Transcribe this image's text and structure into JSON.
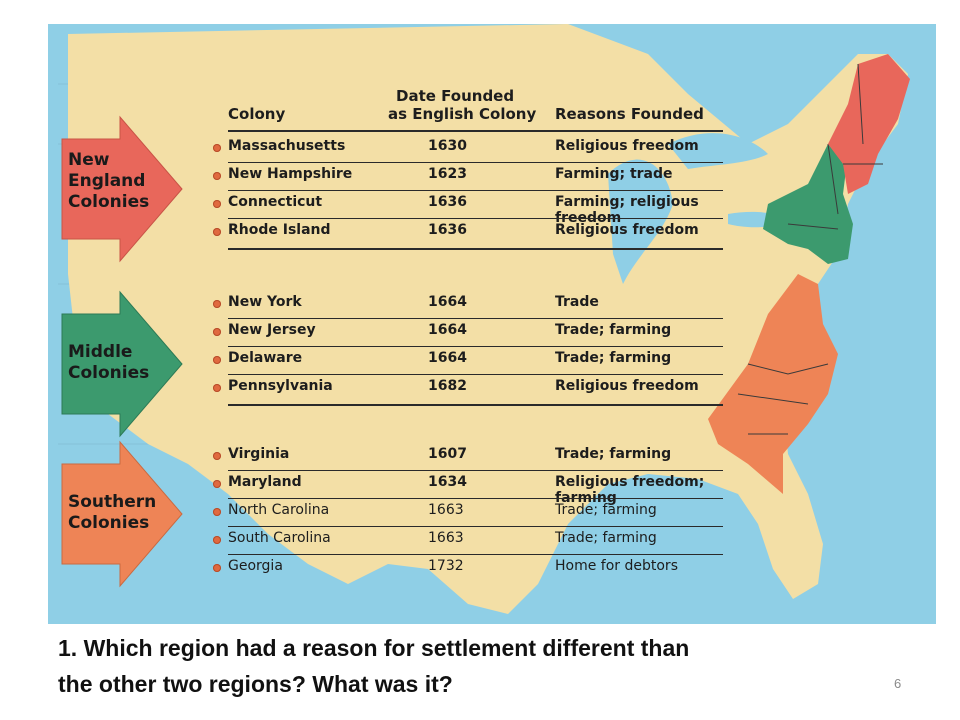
{
  "figure": {
    "headers": {
      "colony": "Colony",
      "date_line1": "Date Founded",
      "date_line2": "as English Colony",
      "reasons": "Reasons Founded"
    },
    "regions": [
      {
        "label_lines": [
          "New",
          "England",
          "Colonies"
        ],
        "color": "#e8675b",
        "colonies": [
          {
            "name": "Massachusetts",
            "year": "1630",
            "reason": "Religious freedom"
          },
          {
            "name": "New Hampshire",
            "year": "1623",
            "reason": "Farming; trade"
          },
          {
            "name": "Connecticut",
            "year": "1636",
            "reason": "Farming; religious freedom"
          },
          {
            "name": "Rhode Island",
            "year": "1636",
            "reason": "Religious freedom"
          }
        ]
      },
      {
        "label_lines": [
          "Middle",
          "Colonies"
        ],
        "color": "#3c9a6e",
        "colonies": [
          {
            "name": "New York",
            "year": "1664",
            "reason": "Trade"
          },
          {
            "name": "New Jersey",
            "year": "1664",
            "reason": "Trade; farming"
          },
          {
            "name": "Delaware",
            "year": "1664",
            "reason": "Trade; farming"
          },
          {
            "name": "Pennsylvania",
            "year": "1682",
            "reason": "Religious freedom"
          }
        ]
      },
      {
        "label_lines": [
          "Southern",
          "Colonies"
        ],
        "color": "#ee8456",
        "colonies": [
          {
            "name": "Virginia",
            "year": "1607",
            "reason": "Trade; farming"
          },
          {
            "name": "Maryland",
            "year": "1634",
            "reason": "Religious freedom; farming"
          },
          {
            "name": "North Carolina",
            "year": "1663",
            "reason": "Trade; farming"
          },
          {
            "name": "South Carolina",
            "year": "1663",
            "reason": "Trade; farming"
          },
          {
            "name": "Georgia",
            "year": "1732",
            "reason": "Home for debtors"
          }
        ]
      }
    ],
    "colors": {
      "ocean": "#8fcfe6",
      "land": "#f3dfa6",
      "new_england": "#e8675b",
      "middle": "#3c9a6e",
      "southern": "#ee8456"
    }
  },
  "question": {
    "line1": "1. Which region had a reason for settlement different than",
    "line2": "the other two regions? What was it?"
  },
  "page_number": "6"
}
